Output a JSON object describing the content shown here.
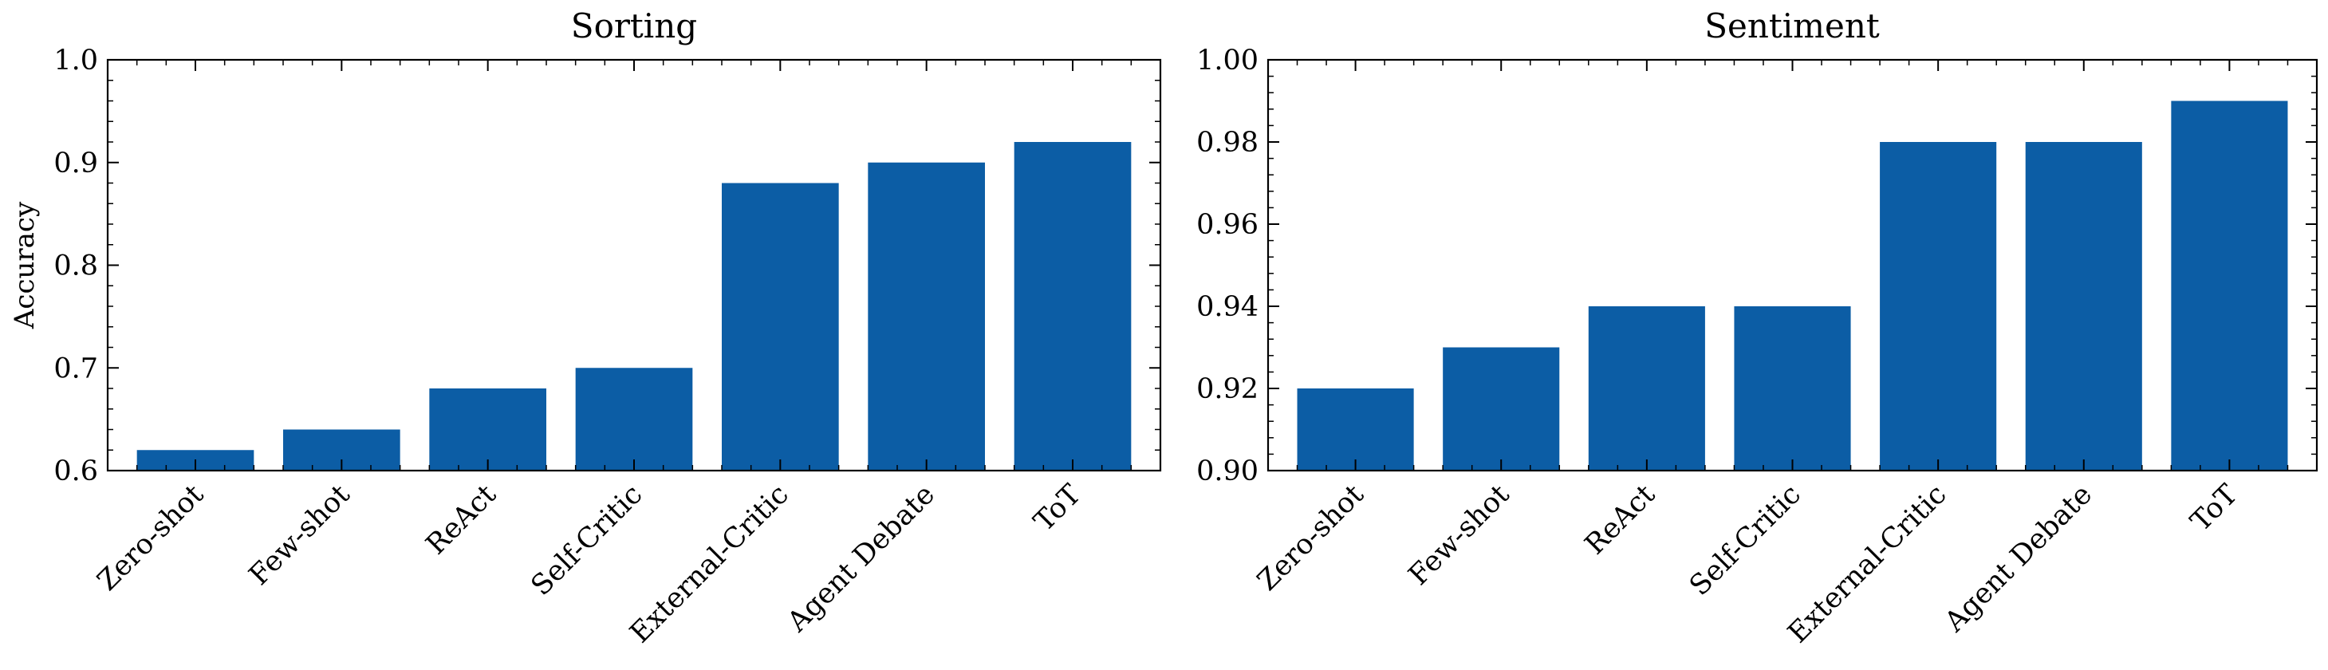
{
  "chart_data": [
    {
      "type": "bar",
      "title": "Sorting",
      "xlabel": "",
      "ylabel": "Accuracy",
      "categories": [
        "Zero-shot",
        "Few-shot",
        "ReAct",
        "Self-Critic",
        "External-Critic",
        "Agent Debate",
        "ToT"
      ],
      "values": [
        0.62,
        0.64,
        0.68,
        0.7,
        0.88,
        0.9,
        0.92
      ],
      "ylim": [
        0.6,
        1.0
      ],
      "yticks": [
        "0.6",
        "0.7",
        "0.8",
        "0.9",
        "1.0"
      ],
      "bar_color": "#0c5da5",
      "grid": false
    },
    {
      "type": "bar",
      "title": "Sentiment",
      "xlabel": "",
      "ylabel": "",
      "categories": [
        "Zero-shot",
        "Few-shot",
        "ReAct",
        "Self-Critic",
        "External-Critic",
        "Agent Debate",
        "ToT"
      ],
      "values": [
        0.92,
        0.93,
        0.94,
        0.94,
        0.98,
        0.98,
        0.99
      ],
      "ylim": [
        0.9,
        1.0
      ],
      "yticks": [
        "0.90",
        "0.92",
        "0.94",
        "0.96",
        "0.98",
        "1.00"
      ],
      "bar_color": "#0c5da5",
      "grid": false
    }
  ]
}
